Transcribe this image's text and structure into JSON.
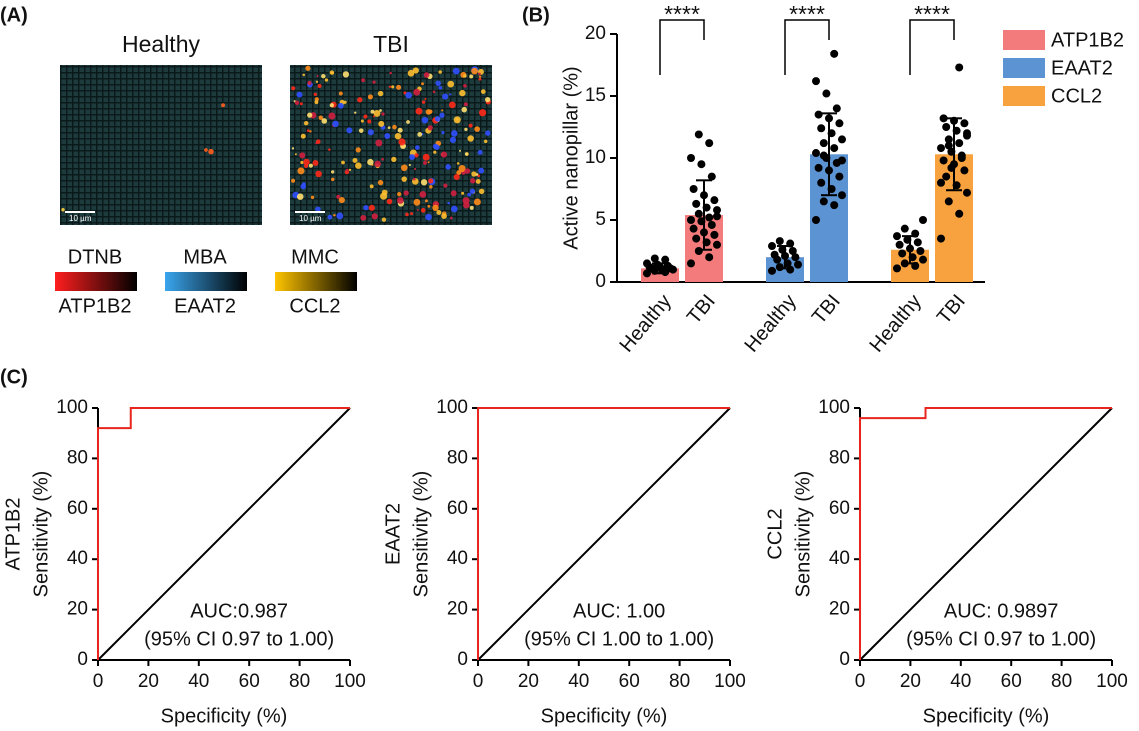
{
  "panel_labels": [
    "(A)",
    "(B)",
    "(C)"
  ],
  "panel_a": {
    "images": [
      {
        "title": "Healthy",
        "scale_bar": "10 µm"
      },
      {
        "title": "TBI",
        "scale_bar": "10 µm"
      }
    ],
    "legend": [
      {
        "dye": "DTNB",
        "target": "ATP1B2",
        "color": "#ff1e1e"
      },
      {
        "dye": "MBA",
        "target": "EAAT2",
        "color": "#3aa6ee"
      },
      {
        "dye": "MMC",
        "target": "CCL2",
        "color": "#ffc400"
      }
    ]
  },
  "chart_data": [
    {
      "type": "bar",
      "ylabel": "Active nanopillar (%)",
      "ylim": [
        0,
        20
      ],
      "yticks": [
        0,
        5,
        10,
        15,
        20
      ],
      "categories": [
        "Healthy",
        "TBI"
      ],
      "legend": "right",
      "series": [
        {
          "name": "ATP1B2",
          "color": "#f47b7b",
          "values": [
            1.1,
            5.4
          ],
          "errors": [
            0.4,
            2.8
          ],
          "significance": "****",
          "points": [
            [
              0.7,
              0.8,
              0.9,
              1.0,
              1.0,
              1.1,
              1.1,
              1.2,
              1.2,
              1.3,
              1.4,
              1.5,
              1.8,
              1.9
            ],
            [
              1.5,
              2.0,
              2.5,
              3.0,
              3.2,
              3.5,
              3.8,
              4.0,
              4.3,
              4.6,
              4.9,
              5.0,
              5.2,
              5.5,
              5.8,
              6.0,
              6.3,
              6.6,
              7.0,
              7.5,
              8.5,
              9.5,
              10.0,
              11.2,
              11.9,
              5.3
            ]
          ]
        },
        {
          "name": "EAAT2",
          "color": "#5b93d3",
          "values": [
            2.0,
            10.3
          ],
          "errors": [
            0.9,
            3.3
          ],
          "significance": "****",
          "points": [
            [
              0.9,
              1.0,
              1.2,
              1.4,
              1.5,
              1.8,
              2.0,
              2.1,
              2.2,
              2.5,
              2.6,
              2.9,
              3.1,
              3.3
            ],
            [
              5.0,
              6.2,
              6.5,
              7.0,
              7.5,
              8.0,
              8.5,
              9.0,
              9.2,
              9.6,
              10.0,
              10.4,
              10.8,
              11.2,
              11.5,
              12.0,
              12.4,
              12.8,
              13.2,
              13.5,
              14.0,
              15.2,
              16.2,
              18.4,
              10.2,
              9.8
            ]
          ]
        },
        {
          "name": "CCL2",
          "color": "#f7a23e",
          "values": [
            2.6,
            10.3
          ],
          "errors": [
            1.1,
            2.9
          ],
          "significance": "****",
          "points": [
            [
              1.1,
              1.3,
              1.5,
              1.8,
              2.0,
              2.3,
              2.5,
              2.7,
              3.0,
              3.2,
              3.4,
              3.7,
              3.9,
              4.3,
              5.0
            ],
            [
              3.5,
              5.5,
              6.5,
              7.2,
              7.8,
              8.5,
              9.0,
              9.5,
              9.8,
              10.2,
              10.5,
              10.8,
              11.2,
              11.5,
              11.8,
              12.2,
              12.5,
              12.8,
              13.0,
              13.2,
              10.0,
              9.2,
              8.0,
              17.3,
              11.0,
              12.0
            ]
          ]
        }
      ]
    },
    {
      "type": "line",
      "ylabel_lines": [
        "ATP1B2",
        "Sensitivity (%)"
      ],
      "xlabel": "Specificity (%)",
      "xlim": [
        0,
        100
      ],
      "ylim": [
        0,
        100
      ],
      "xticks": [
        0,
        20,
        40,
        60,
        80,
        100
      ],
      "yticks": [
        0,
        20,
        40,
        60,
        80,
        100
      ],
      "annotation": [
        "AUC:0.987",
        "(95% CI 0.97 to 1.00)"
      ],
      "series": [
        {
          "color": "#e8261d",
          "x": [
            0,
            0,
            13,
            13,
            100
          ],
          "values": [
            0,
            92,
            92,
            100,
            100
          ]
        },
        {
          "color": "#000000",
          "x": [
            0,
            100
          ],
          "values": [
            0,
            100
          ]
        }
      ]
    },
    {
      "type": "line",
      "ylabel_lines": [
        "EAAT2",
        "Sensitivity (%)"
      ],
      "xlabel": "Specificity (%)",
      "xlim": [
        0,
        100
      ],
      "ylim": [
        0,
        100
      ],
      "xticks": [
        0,
        20,
        40,
        60,
        80,
        100
      ],
      "yticks": [
        0,
        20,
        40,
        60,
        80,
        100
      ],
      "annotation": [
        "AUC: 1.00",
        "(95% CI 1.00 to 1.00)"
      ],
      "series": [
        {
          "color": "#e8261d",
          "x": [
            0,
            0,
            100
          ],
          "values": [
            0,
            100,
            100
          ]
        },
        {
          "color": "#000000",
          "x": [
            0,
            100
          ],
          "values": [
            0,
            100
          ]
        }
      ]
    },
    {
      "type": "line",
      "ylabel_lines": [
        "CCL2",
        "Sensitivity (%)"
      ],
      "xlabel": "Specificity (%)",
      "xlim": [
        0,
        100
      ],
      "ylim": [
        0,
        100
      ],
      "xticks": [
        0,
        20,
        40,
        60,
        80,
        100
      ],
      "yticks": [
        0,
        20,
        40,
        60,
        80,
        100
      ],
      "annotation": [
        "AUC: 0.9897",
        "(95% CI 0.97 to 1.00)"
      ],
      "series": [
        {
          "color": "#e8261d",
          "x": [
            0,
            0,
            26,
            26,
            100
          ],
          "values": [
            0,
            96,
            96,
            100,
            100
          ]
        },
        {
          "color": "#000000",
          "x": [
            0,
            100
          ],
          "values": [
            0,
            100
          ]
        }
      ]
    }
  ]
}
